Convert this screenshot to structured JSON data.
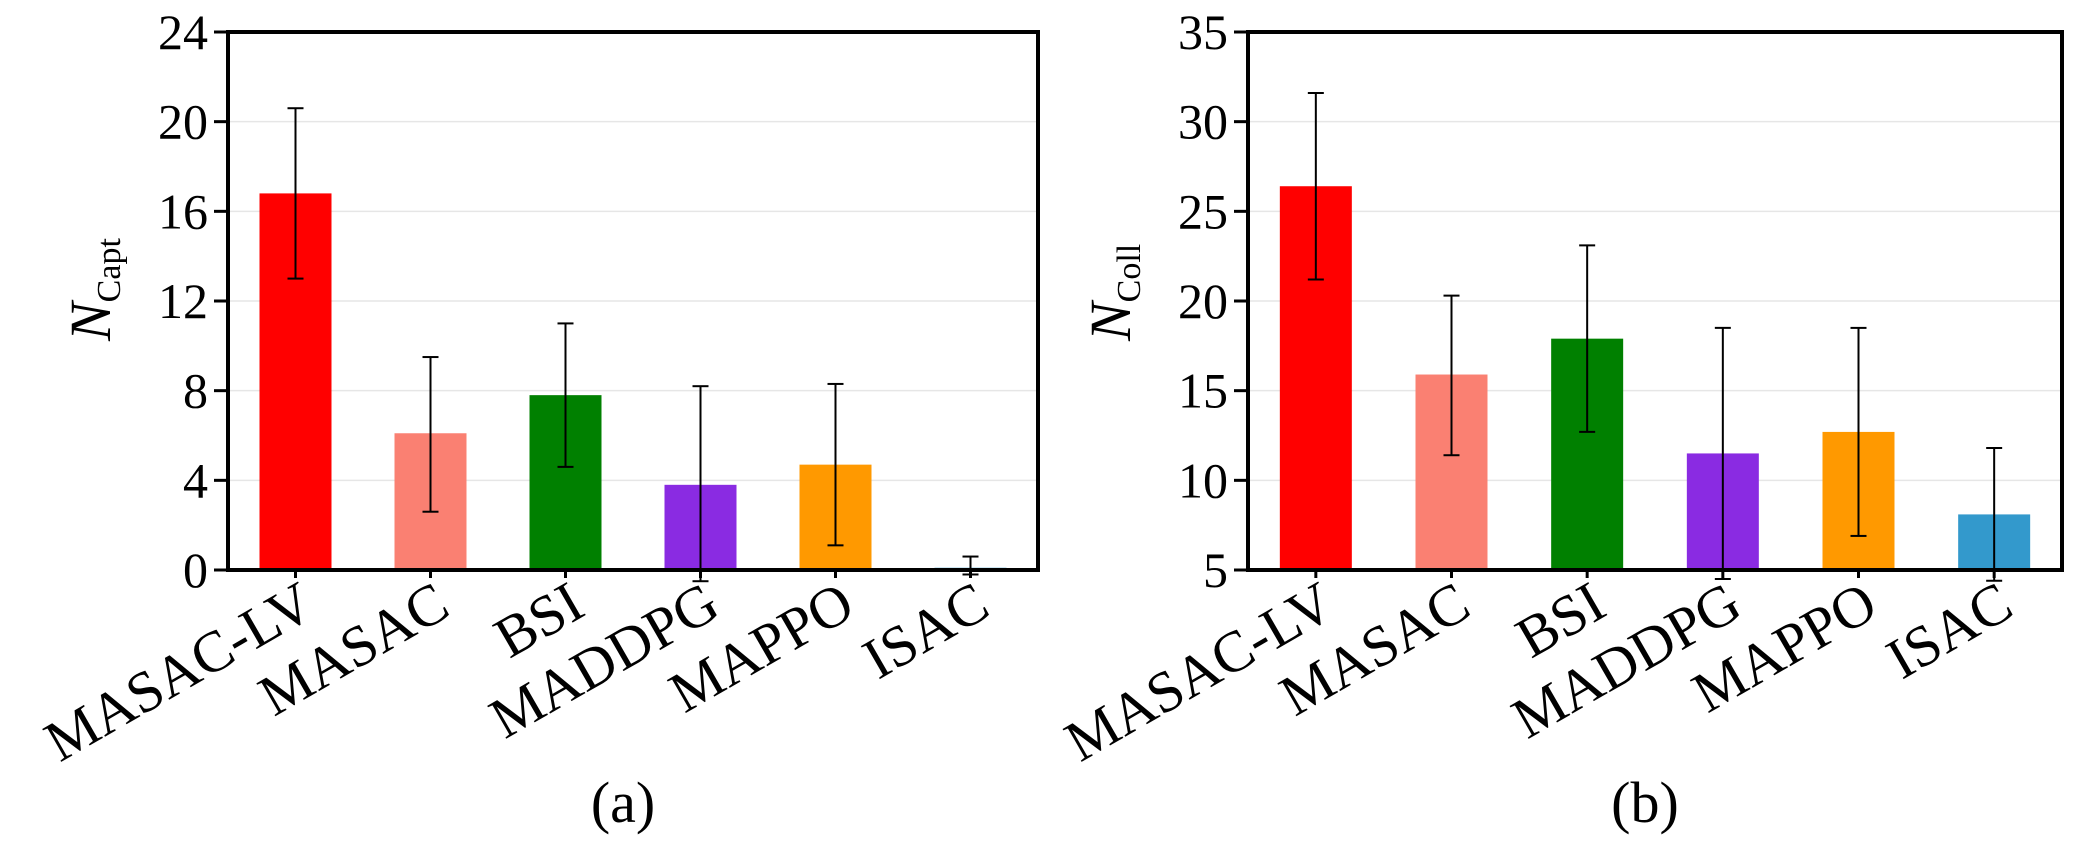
{
  "colors": {
    "MASAC-LV": "#ff0000",
    "MASAC": "#fa8072",
    "BSI": "#008000",
    "MADDPG": "#8a2be2",
    "MAPPO": "#ff9900",
    "ISAC": "#3399cc",
    "error_bar": "#000000",
    "grid": "#e6e6e6"
  },
  "chart_data": [
    {
      "type": "bar",
      "panel_label": "(a)",
      "ylabel_main": "N",
      "ylabel_sub": "Capt",
      "categories": [
        "MASAC-LV",
        "MASAC",
        "BSI",
        "MADDPG",
        "MAPPO",
        "ISAC"
      ],
      "values": [
        16.8,
        6.1,
        7.8,
        3.8,
        4.7,
        0.1
      ],
      "error_low": [
        13.0,
        2.6,
        4.6,
        -0.5,
        1.1,
        -0.2
      ],
      "error_high": [
        20.6,
        9.5,
        11.0,
        8.2,
        8.3,
        0.6
      ],
      "ylim": [
        0,
        24
      ],
      "yticks": [
        0,
        4,
        8,
        12,
        16,
        20,
        24
      ],
      "grid": true
    },
    {
      "type": "bar",
      "panel_label": "(b)",
      "ylabel_main": "N",
      "ylabel_sub": "Coll",
      "categories": [
        "MASAC-LV",
        "MASAC",
        "BSI",
        "MADDPG",
        "MAPPO",
        "ISAC"
      ],
      "values": [
        26.4,
        15.9,
        17.9,
        11.5,
        12.7,
        8.1
      ],
      "error_low": [
        21.2,
        11.4,
        12.7,
        4.5,
        6.9,
        4.4
      ],
      "error_high": [
        31.6,
        20.3,
        23.1,
        18.5,
        18.5,
        11.8
      ],
      "ylim": [
        5,
        35
      ],
      "yticks": [
        5,
        10,
        15,
        20,
        25,
        30,
        35
      ],
      "grid": true
    }
  ]
}
